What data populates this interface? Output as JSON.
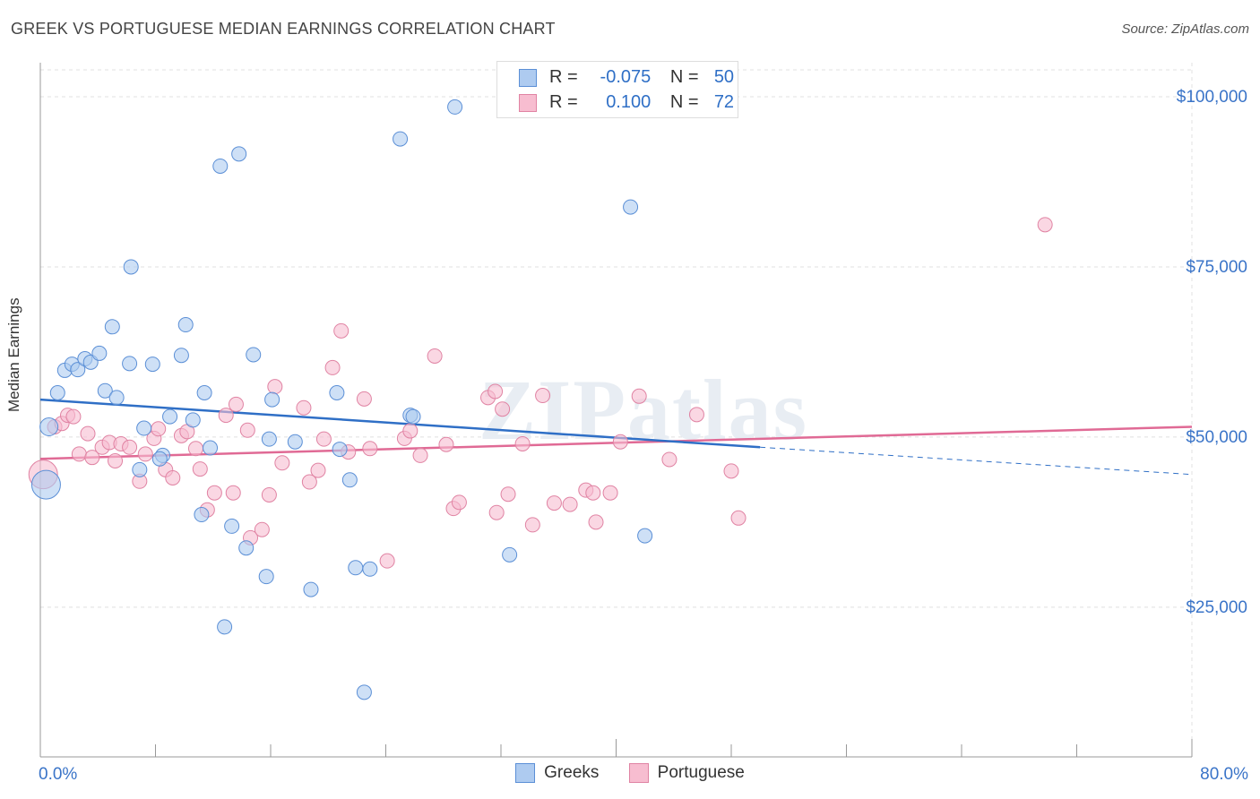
{
  "title": "GREEK VS PORTUGUESE MEDIAN EARNINGS CORRELATION CHART",
  "source": "Source: ZipAtlas.com",
  "watermark": "ZIPatlas",
  "legend": {
    "rows": [
      {
        "r_label": "R =",
        "r_value": "-0.075",
        "n_label": "N =",
        "n_value": "50"
      },
      {
        "r_label": "R =",
        "r_value": "0.100",
        "n_label": "N =",
        "n_value": "72"
      }
    ]
  },
  "bottom_legend": [
    "Greeks",
    "Portuguese"
  ],
  "colors": {
    "greeks_fill": "#aecbf0",
    "greeks_stroke": "#5b8fd6",
    "greeks_line": "#2f6fc6",
    "portuguese_fill": "#f7bdd0",
    "portuguese_stroke": "#e083a3",
    "portuguese_line": "#e06a95",
    "axis_text": "#3a74c8",
    "grid": "#e0e0e0"
  },
  "chart_data": {
    "type": "scatter",
    "title": "GREEK VS PORTUGUESE MEDIAN EARNINGS CORRELATION CHART",
    "xlabel": "",
    "ylabel": "Median Earnings",
    "xlim": [
      0,
      80
    ],
    "ylim": [
      3000,
      105000
    ],
    "x_tick_labels": [
      "0.0%",
      "80.0%"
    ],
    "y_ticks": [
      25000,
      50000,
      75000,
      100000
    ],
    "y_tick_labels": [
      "$25,000",
      "$50,000",
      "$75,000",
      "$100,000"
    ],
    "grid": true,
    "legend_position": "top-center",
    "series": [
      {
        "name": "Greeks",
        "trend": {
          "x": [
            0,
            50
          ],
          "y": [
            55500,
            48500
          ],
          "dashed_to": [
            80,
            44500
          ]
        },
        "points": [
          {
            "x": 0.4,
            "y": 43000,
            "size": 16
          },
          {
            "x": 0.6,
            "y": 51500,
            "size": 10
          },
          {
            "x": 1.2,
            "y": 56500
          },
          {
            "x": 1.7,
            "y": 59800
          },
          {
            "x": 2.2,
            "y": 60700
          },
          {
            "x": 2.6,
            "y": 59900
          },
          {
            "x": 3.1,
            "y": 61500
          },
          {
            "x": 3.5,
            "y": 61000
          },
          {
            "x": 4.1,
            "y": 62300
          },
          {
            "x": 4.5,
            "y": 56800
          },
          {
            "x": 5.3,
            "y": 55800
          },
          {
            "x": 5.0,
            "y": 66200
          },
          {
            "x": 6.2,
            "y": 60800
          },
          {
            "x": 6.3,
            "y": 75000
          },
          {
            "x": 6.9,
            "y": 45200
          },
          {
            "x": 7.2,
            "y": 51300
          },
          {
            "x": 7.8,
            "y": 60700
          },
          {
            "x": 8.5,
            "y": 47300
          },
          {
            "x": 9.0,
            "y": 53000
          },
          {
            "x": 9.8,
            "y": 62000
          },
          {
            "x": 10.1,
            "y": 66500
          },
          {
            "x": 10.6,
            "y": 52500
          },
          {
            "x": 11.2,
            "y": 38600
          },
          {
            "x": 11.4,
            "y": 56500
          },
          {
            "x": 11.8,
            "y": 48400
          },
          {
            "x": 12.5,
            "y": 89800
          },
          {
            "x": 12.8,
            "y": 22100
          },
          {
            "x": 13.3,
            "y": 36900
          },
          {
            "x": 13.8,
            "y": 91600
          },
          {
            "x": 14.3,
            "y": 33700
          },
          {
            "x": 14.8,
            "y": 62100
          },
          {
            "x": 15.7,
            "y": 29500
          },
          {
            "x": 15.9,
            "y": 49700
          },
          {
            "x": 16.1,
            "y": 55500
          },
          {
            "x": 17.7,
            "y": 49300
          },
          {
            "x": 18.8,
            "y": 27600
          },
          {
            "x": 20.6,
            "y": 56500
          },
          {
            "x": 20.8,
            "y": 48200
          },
          {
            "x": 21.5,
            "y": 43700
          },
          {
            "x": 21.9,
            "y": 30800
          },
          {
            "x": 22.5,
            "y": 12500
          },
          {
            "x": 22.9,
            "y": 30600
          },
          {
            "x": 25.0,
            "y": 93800
          },
          {
            "x": 25.7,
            "y": 53200
          },
          {
            "x": 25.9,
            "y": 53000
          },
          {
            "x": 28.8,
            "y": 98500
          },
          {
            "x": 32.6,
            "y": 32700
          },
          {
            "x": 41.0,
            "y": 83800
          },
          {
            "x": 42.0,
            "y": 35500
          },
          {
            "x": 8.3,
            "y": 46800
          }
        ]
      },
      {
        "name": "Portuguese",
        "trend": {
          "x": [
            0,
            80
          ],
          "y": [
            46800,
            51500
          ]
        },
        "points": [
          {
            "x": 0.2,
            "y": 44500,
            "size": 16
          },
          {
            "x": 1.0,
            "y": 51500
          },
          {
            "x": 1.5,
            "y": 52000
          },
          {
            "x": 1.9,
            "y": 53200
          },
          {
            "x": 2.3,
            "y": 53000
          },
          {
            "x": 2.7,
            "y": 47500
          },
          {
            "x": 3.3,
            "y": 50500
          },
          {
            "x": 3.6,
            "y": 47000
          },
          {
            "x": 4.3,
            "y": 48500
          },
          {
            "x": 4.8,
            "y": 49200
          },
          {
            "x": 5.2,
            "y": 46500
          },
          {
            "x": 5.6,
            "y": 49000
          },
          {
            "x": 6.2,
            "y": 48500
          },
          {
            "x": 6.9,
            "y": 43500
          },
          {
            "x": 7.3,
            "y": 47500
          },
          {
            "x": 7.9,
            "y": 49800
          },
          {
            "x": 8.2,
            "y": 51200
          },
          {
            "x": 8.7,
            "y": 45200
          },
          {
            "x": 9.2,
            "y": 44000
          },
          {
            "x": 9.8,
            "y": 50200
          },
          {
            "x": 10.2,
            "y": 50800
          },
          {
            "x": 10.8,
            "y": 48300
          },
          {
            "x": 11.1,
            "y": 45300
          },
          {
            "x": 11.6,
            "y": 39300
          },
          {
            "x": 12.1,
            "y": 41800
          },
          {
            "x": 12.9,
            "y": 53200
          },
          {
            "x": 13.4,
            "y": 41800
          },
          {
            "x": 13.6,
            "y": 54800
          },
          {
            "x": 14.4,
            "y": 51000
          },
          {
            "x": 14.6,
            "y": 35200
          },
          {
            "x": 15.4,
            "y": 36400
          },
          {
            "x": 15.9,
            "y": 41500
          },
          {
            "x": 16.3,
            "y": 57400
          },
          {
            "x": 16.8,
            "y": 46200
          },
          {
            "x": 18.3,
            "y": 54300
          },
          {
            "x": 18.7,
            "y": 43400
          },
          {
            "x": 19.3,
            "y": 45100
          },
          {
            "x": 19.7,
            "y": 49700
          },
          {
            "x": 20.3,
            "y": 60200
          },
          {
            "x": 20.9,
            "y": 65600
          },
          {
            "x": 21.4,
            "y": 47800
          },
          {
            "x": 22.5,
            "y": 55600
          },
          {
            "x": 22.9,
            "y": 48300
          },
          {
            "x": 24.1,
            "y": 31800
          },
          {
            "x": 25.3,
            "y": 49800
          },
          {
            "x": 25.7,
            "y": 50900
          },
          {
            "x": 26.4,
            "y": 47300
          },
          {
            "x": 27.4,
            "y": 61900
          },
          {
            "x": 28.2,
            "y": 48900
          },
          {
            "x": 28.7,
            "y": 39500
          },
          {
            "x": 29.1,
            "y": 40400
          },
          {
            "x": 31.1,
            "y": 55800
          },
          {
            "x": 31.6,
            "y": 56700
          },
          {
            "x": 31.7,
            "y": 38900
          },
          {
            "x": 32.1,
            "y": 54100
          },
          {
            "x": 32.5,
            "y": 41600
          },
          {
            "x": 33.5,
            "y": 49000
          },
          {
            "x": 34.2,
            "y": 37100
          },
          {
            "x": 34.9,
            "y": 56100
          },
          {
            "x": 35.7,
            "y": 40300
          },
          {
            "x": 36.8,
            "y": 40100
          },
          {
            "x": 37.9,
            "y": 42200
          },
          {
            "x": 38.4,
            "y": 41800
          },
          {
            "x": 38.6,
            "y": 37500
          },
          {
            "x": 39.6,
            "y": 41800
          },
          {
            "x": 40.3,
            "y": 49300
          },
          {
            "x": 41.6,
            "y": 56000
          },
          {
            "x": 43.7,
            "y": 46700
          },
          {
            "x": 45.6,
            "y": 53300
          },
          {
            "x": 48.0,
            "y": 45000
          },
          {
            "x": 48.5,
            "y": 38100
          },
          {
            "x": 69.8,
            "y": 81200
          }
        ]
      }
    ]
  }
}
